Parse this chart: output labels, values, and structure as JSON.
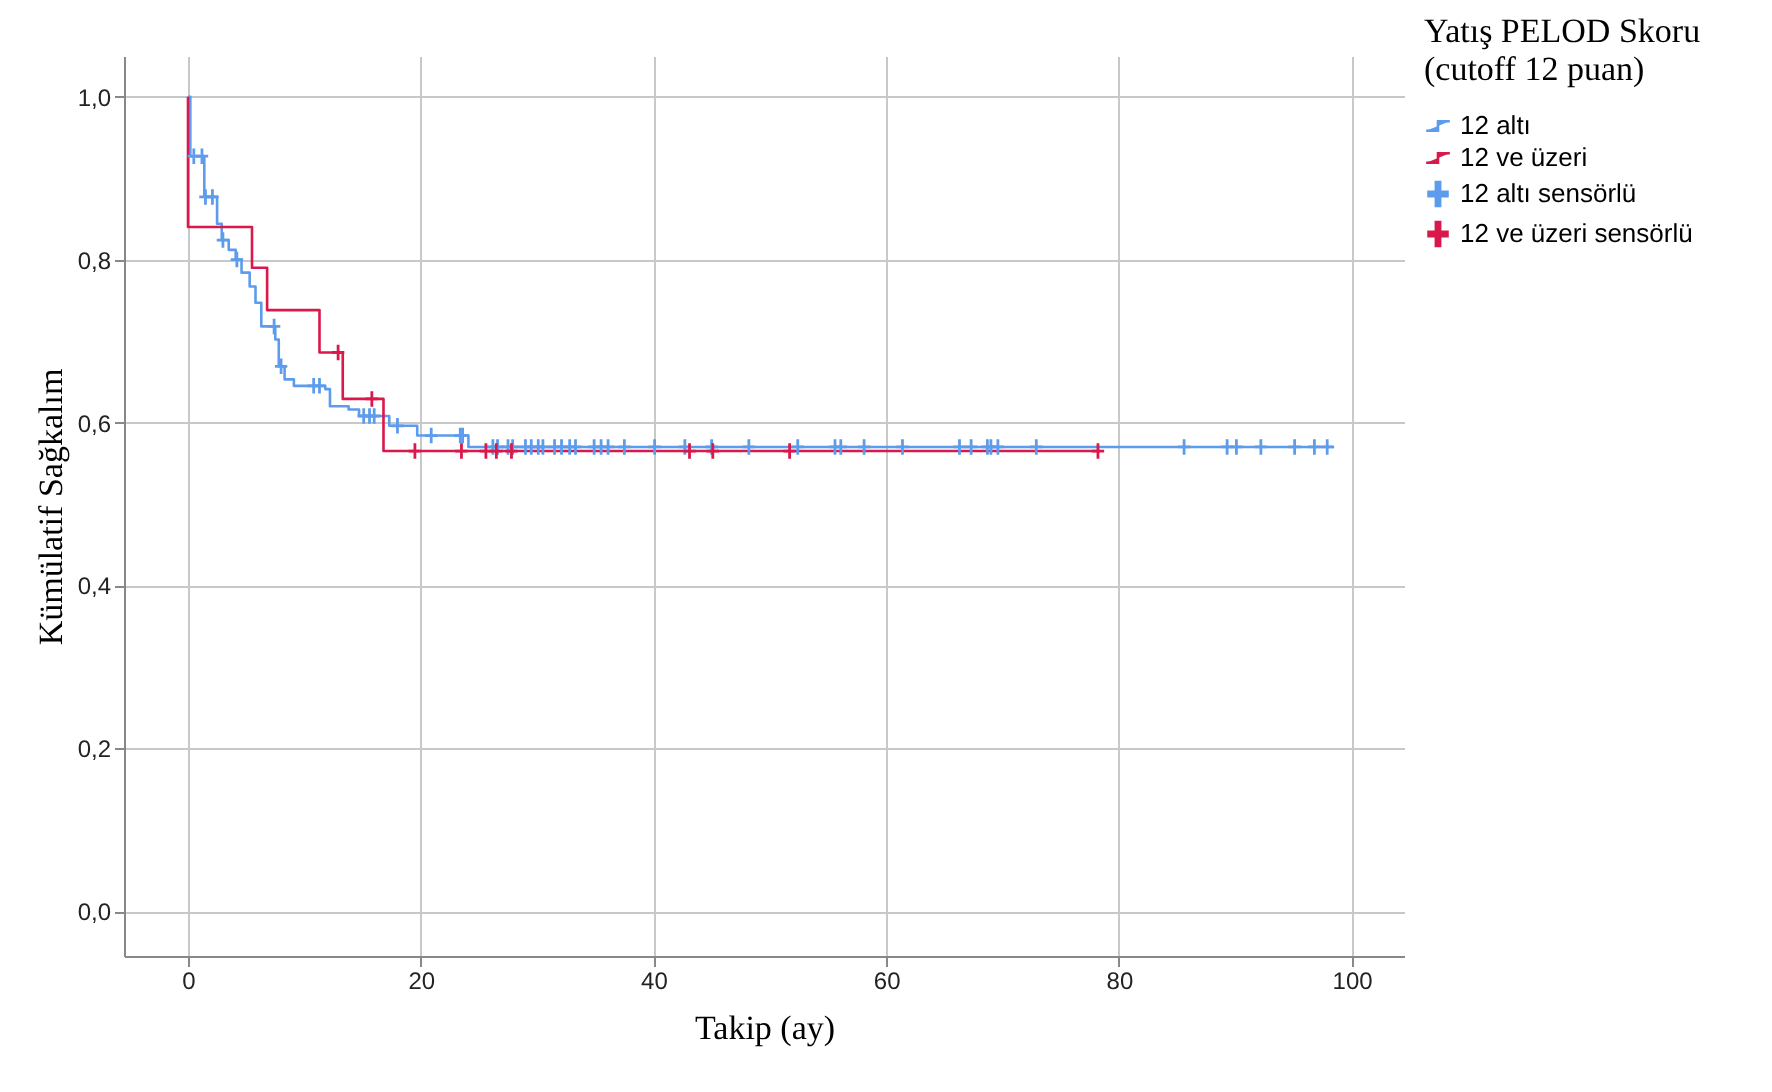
{
  "chart_data": {
    "type": "step",
    "xlabel": "Takip (ay)",
    "ylabel": "Kümülatif Sağkalım",
    "legend_title": "Yatış PELOD Skoru (cutoff 12 puan)",
    "xlim": [
      -5.5,
      104.5
    ],
    "xticks": [
      0,
      20,
      40,
      60,
      80,
      100
    ],
    "ylim": [
      -0.055,
      1.05
    ],
    "yticks": [
      {
        "value": 0,
        "label": "0,0"
      },
      {
        "value": 0.2,
        "label": "0,2"
      },
      {
        "value": 0.4,
        "label": "0,4"
      },
      {
        "value": 0.6,
        "label": "0,6"
      },
      {
        "value": 0.8,
        "label": "0,8"
      },
      {
        "value": 1,
        "label": "1,0"
      }
    ],
    "grid": true,
    "legend": "top right",
    "series": [
      {
        "name": "12 altı",
        "color": "#5d9cec",
        "x": [
          0,
          0.2,
          1.4,
          2.5,
          2.9,
          3.5,
          4.1,
          4.6,
          5.3,
          5.8,
          6.3,
          7.5,
          7.8,
          8.3,
          9.1,
          11.8,
          12.2,
          13.8,
          14.7,
          17.3,
          19.7,
          24.1,
          98.5
        ],
        "values": [
          1.0,
          0.927,
          0.877,
          0.844,
          0.824,
          0.812,
          0.8,
          0.784,
          0.767,
          0.747,
          0.718,
          0.702,
          0.669,
          0.653,
          0.645,
          0.641,
          0.62,
          0.616,
          0.608,
          0.596,
          0.584,
          0.57,
          0.57
        ]
      },
      {
        "name": "12 ve üzeri",
        "color": "#d9184b",
        "x": [
          0,
          0,
          5.5,
          6.8,
          11.3,
          13.3,
          16.8,
          78.4
        ],
        "values": [
          1.0,
          0.84,
          0.79,
          0.738,
          0.686,
          0.629,
          0.565,
          0.565
        ]
      },
      {
        "name": "12 altı sensörlü",
        "type": "scatter",
        "marker": "cross",
        "color": "#5d9cec",
        "x": [
          0.5,
          1.2,
          1.5,
          2.1,
          3.0,
          4.2,
          7.4,
          8.0,
          10.8,
          11.3,
          15.1,
          15.6,
          16.0,
          18.0,
          20.9,
          23.4,
          23.6,
          26.2,
          26.6,
          27.5,
          27.9,
          29.0,
          29.5,
          30.1,
          30.5,
          31.5,
          32.1,
          32.8,
          33.3,
          34.9,
          35.5,
          36.1,
          37.5,
          40.1,
          42.7,
          45.0,
          48.2,
          52.4,
          55.6,
          56.1,
          58.1,
          61.4,
          66.3,
          67.3,
          68.7,
          69.0,
          69.6,
          72.9,
          85.6,
          89.3,
          90.1,
          92.2,
          95.1,
          96.8,
          97.9
        ],
        "values": [
          0.927,
          0.927,
          0.877,
          0.877,
          0.824,
          0.8,
          0.718,
          0.669,
          0.645,
          0.645,
          0.608,
          0.608,
          0.608,
          0.596,
          0.584,
          0.584,
          0.584,
          0.57,
          0.57,
          0.57,
          0.57,
          0.57,
          0.57,
          0.57,
          0.57,
          0.57,
          0.57,
          0.57,
          0.57,
          0.57,
          0.57,
          0.57,
          0.57,
          0.57,
          0.57,
          0.57,
          0.57,
          0.57,
          0.57,
          0.57,
          0.57,
          0.57,
          0.57,
          0.57,
          0.57,
          0.57,
          0.57,
          0.57,
          0.57,
          0.57,
          0.57,
          0.57,
          0.57,
          0.57,
          0.57
        ]
      },
      {
        "name": "12 ve üzeri sensörlü",
        "type": "scatter",
        "marker": "cross",
        "color": "#d9184b",
        "x": [
          12.9,
          15.8,
          19.5,
          23.5,
          25.6,
          26.5,
          27.8,
          43.1,
          45.1,
          51.7,
          78.2
        ],
        "values": [
          0.686,
          0.629,
          0.565,
          0.565,
          0.565,
          0.565,
          0.565,
          0.565,
          0.565,
          0.565,
          0.565
        ]
      }
    ]
  }
}
